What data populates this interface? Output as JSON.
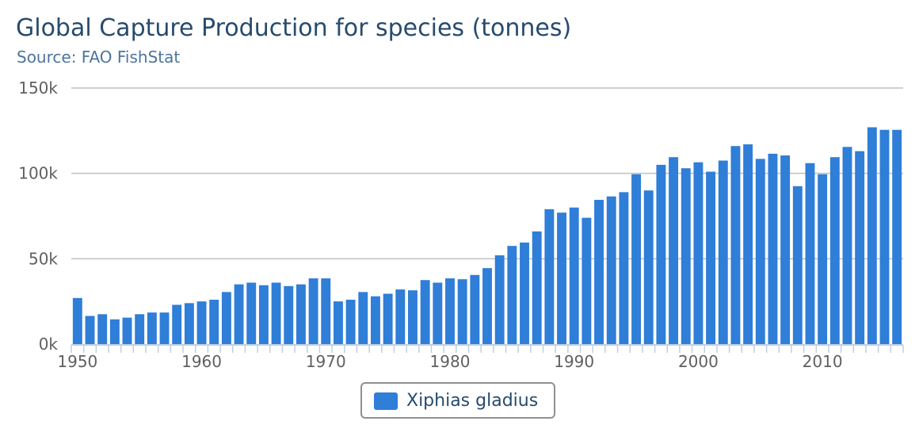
{
  "chart_data": {
    "type": "bar",
    "title": "Global Capture Production for species (tonnes)",
    "subtitle": "Source: FAO FishStat",
    "x_start": 1950,
    "x_tick_labels": [
      "1950",
      "1960",
      "1970",
      "1980",
      "1990",
      "2000",
      "2010"
    ],
    "y_tick_labels": [
      "0k",
      "50k",
      "100k",
      "150k"
    ],
    "ylim": [
      0,
      150000
    ],
    "grid": true,
    "legend_position": "bottom-center",
    "series": [
      {
        "name": "Xiphias gladius",
        "color": "#2f7ed8",
        "values": [
          27000,
          16500,
          17500,
          14500,
          15500,
          17500,
          18500,
          18500,
          23000,
          24000,
          25000,
          26000,
          30500,
          35000,
          36000,
          34500,
          36000,
          34000,
          35000,
          38500,
          38500,
          25000,
          26000,
          30500,
          28000,
          29500,
          32000,
          31500,
          37500,
          36000,
          38500,
          38000,
          40500,
          44500,
          52000,
          57500,
          59500,
          66000,
          79000,
          77000,
          80000,
          74000,
          84500,
          86500,
          89000,
          99500,
          90000,
          105000,
          109500,
          103000,
          106500,
          101000,
          107500,
          116000,
          117000,
          108500,
          111500,
          110500,
          92500,
          106000,
          99500,
          109500,
          115500,
          113000,
          127000,
          125500,
          125500
        ]
      }
    ]
  }
}
